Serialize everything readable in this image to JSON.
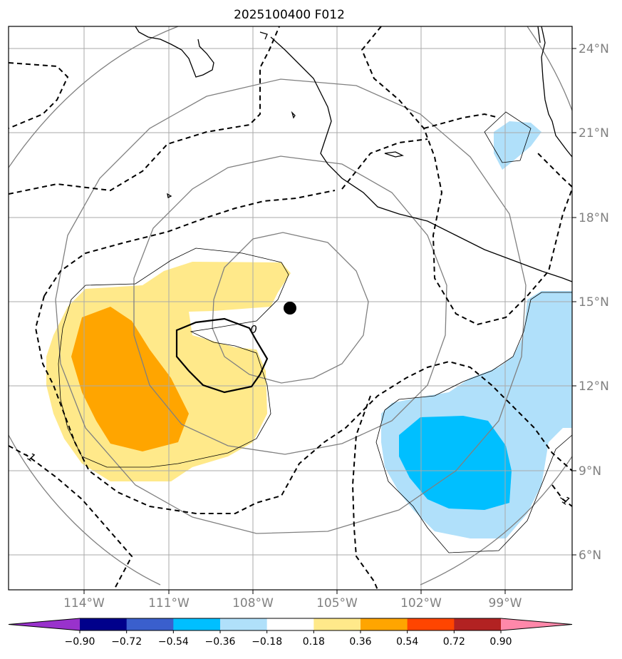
{
  "title": "2025100400 F012",
  "lat_labels": [
    "24°N",
    "21°N",
    "18°N",
    "15°N",
    "12°N",
    "9°N",
    "6°N"
  ],
  "lon_labels": [
    "114°W",
    "111°W",
    "108°W",
    "105°W",
    "102°W",
    "99°W"
  ],
  "contour_labels": {
    "zero": "0",
    "minus_one_left": "-1",
    "minus_one_right": "-1"
  },
  "colorbar": {
    "ticks": [
      "−0.90",
      "−0.72",
      "−0.54",
      "−0.36",
      "−0.18",
      "0.18",
      "0.36",
      "0.54",
      "0.72",
      "0.90"
    ],
    "colors": [
      "#9932cc",
      "#00008b",
      "#3a5fcd",
      "#00bfff",
      "#b0e0fa",
      "#ffffff",
      "#ffe98a",
      "#ffa500",
      "#ff4500",
      "#b22222",
      "#ff88aa"
    ]
  },
  "colors": {
    "light_yellow": "#ffe98a",
    "orange": "#ffa500",
    "light_blue": "#b0e0fa",
    "deep_sky_blue": "#00bfff",
    "range_rings": "#808080",
    "gridlines": "#aaaaaa"
  },
  "storm_center_marker": "filled-black-circle"
}
